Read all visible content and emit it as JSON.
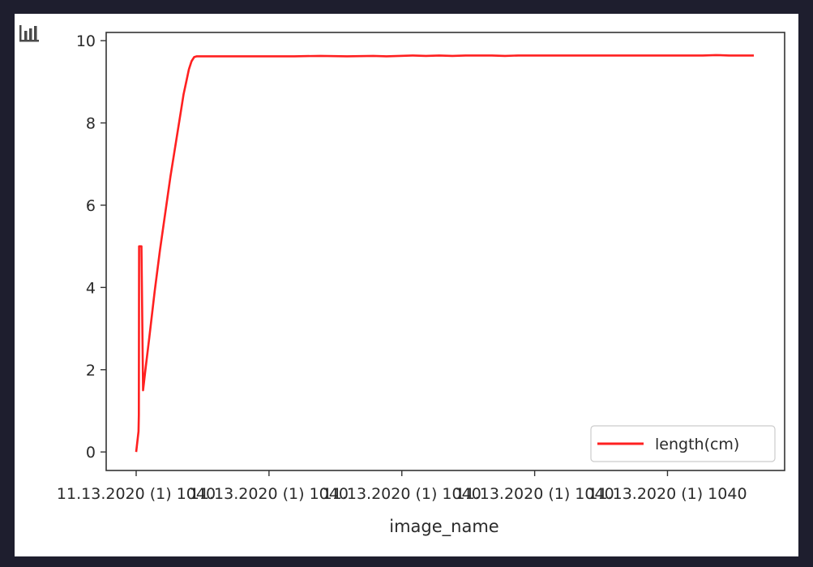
{
  "toolbar": {
    "chart_icon": "bar-chart-icon"
  },
  "colors": {
    "series": "#ff2020",
    "axis": "#333333",
    "background": "#1e1e2e"
  },
  "chart_data": {
    "type": "line",
    "title": "",
    "xlabel": "image_name",
    "ylabel": "",
    "ylim": [
      -0.45,
      10.2
    ],
    "yticks": [
      0,
      2,
      4,
      6,
      8,
      10
    ],
    "xticks": [
      "11.13.2020 (1) 1040",
      "11.13.2020 (1) 1040",
      "11.13.2020 (1) 1040",
      "11.13.2020 (1) 1040",
      "11.13.2020 (1) 1040"
    ],
    "grid": false,
    "legend_position": "lower-right",
    "series": [
      {
        "name": "length(cm)",
        "color": "#ff2020",
        "x": [
          0,
          9,
          10,
          11,
          13,
          16,
          20,
          26,
          35,
          50,
          70,
          90,
          110,
          130,
          150,
          170,
          180,
          190,
          200,
          210,
          220,
          230,
          250,
          300,
          400,
          500,
          600,
          700,
          800,
          900,
          950,
          1000,
          1050,
          1100,
          1150,
          1200,
          1250,
          1300,
          1350,
          1400,
          1450,
          1500,
          1550,
          1600,
          1650,
          1700,
          1750,
          1800,
          1850,
          1900,
          1950,
          2000,
          2050,
          2100,
          2150,
          2200,
          2250,
          2300,
          2344
        ],
        "y": [
          0,
          0.5,
          0.9,
          5.0,
          5.0,
          5.0,
          5.0,
          1.5,
          2.0,
          2.8,
          3.9,
          4.9,
          5.8,
          6.7,
          7.5,
          8.3,
          8.7,
          9.0,
          9.3,
          9.5,
          9.6,
          9.62,
          9.62,
          9.62,
          9.62,
          9.62,
          9.62,
          9.63,
          9.62,
          9.63,
          9.62,
          9.63,
          9.64,
          9.63,
          9.64,
          9.63,
          9.64,
          9.64,
          9.64,
          9.63,
          9.64,
          9.64,
          9.64,
          9.64,
          9.64,
          9.64,
          9.64,
          9.64,
          9.64,
          9.64,
          9.64,
          9.64,
          9.64,
          9.64,
          9.64,
          9.65,
          9.64,
          9.64,
          9.64
        ]
      }
    ]
  }
}
